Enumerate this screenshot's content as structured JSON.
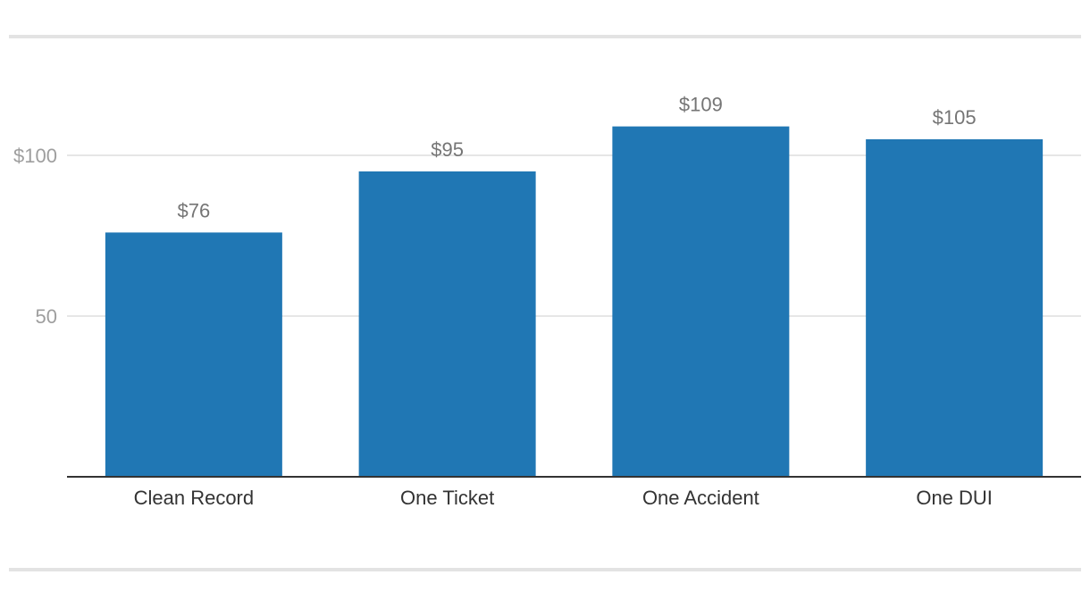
{
  "chart_data": {
    "type": "bar",
    "categories": [
      "Clean Record",
      "One Ticket",
      "One Accident",
      "One DUI"
    ],
    "values": [
      76,
      95,
      109,
      105
    ],
    "data_labels": [
      "$76",
      "$95",
      "$109",
      "$105"
    ],
    "y_ticks": [
      {
        "value": 50,
        "label": "50"
      },
      {
        "value": 100,
        "label": "$100"
      }
    ],
    "ylim": [
      0,
      130
    ],
    "bar_color": "#2077b4",
    "grid": true,
    "legend": "none",
    "title": "",
    "xlabel": "",
    "ylabel": ""
  }
}
